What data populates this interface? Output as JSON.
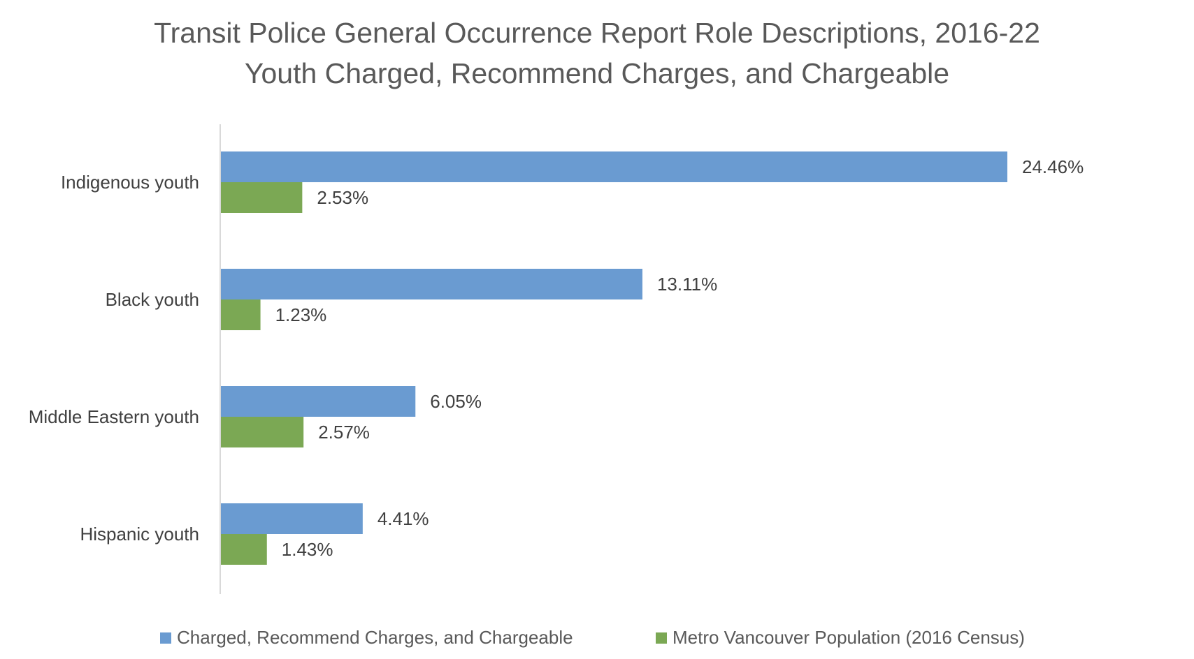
{
  "chart_data": {
    "type": "bar",
    "orientation": "horizontal",
    "title": "Transit Police General Occurrence Report Role Descriptions, 2016-22",
    "subtitle": "Youth Charged, Recommend Charges, and Chargeable",
    "categories": [
      "Indigenous youth",
      "Black youth",
      "Middle Eastern youth",
      "Hispanic youth"
    ],
    "series": [
      {
        "name": "Charged, Recommend Charges, and Chargeable",
        "color": "#6A9BD1",
        "values": [
          24.46,
          13.11,
          6.05,
          4.41
        ],
        "labels": [
          "24.46%",
          "13.11%",
          "6.05%",
          "4.41%"
        ]
      },
      {
        "name": "Metro Vancouver Population (2016 Census)",
        "color": "#7BA854",
        "values": [
          2.53,
          1.23,
          2.57,
          1.43
        ],
        "labels": [
          "2.53%",
          "1.23%",
          "2.57%",
          "1.43%"
        ]
      }
    ],
    "xlim": [
      0,
      24.46
    ],
    "grid": false,
    "legend_position": "bottom",
    "xlabel": "",
    "ylabel": ""
  }
}
